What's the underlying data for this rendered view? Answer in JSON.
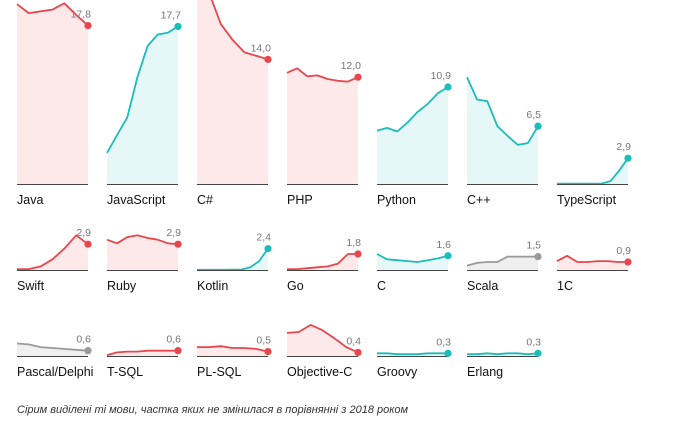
{
  "note": "Сірим виділені ті мови, частка яких не змінилася в порівнянні з 2018 роком",
  "colors": {
    "red": "#e8464d",
    "redFill": "#fde9e9",
    "teal": "#1bbdb8",
    "tealFill": "#e6f7f7",
    "gray": "#9a9a9a",
    "grayFill": "#efefef",
    "axis": "#444444"
  },
  "chart_data": {
    "type": "area",
    "title": "",
    "ymax": 20,
    "panels": [
      {
        "name": "Java",
        "value_label": "17,8",
        "color": "red",
        "values": [
          20.2,
          19.2,
          19.4,
          19.6,
          20.3,
          19.0,
          17.8
        ]
      },
      {
        "name": "JavaScript",
        "value_label": "17,7",
        "color": "teal",
        "values": [
          3.5,
          5.5,
          7.5,
          12.0,
          15.5,
          16.8,
          17.0,
          17.7
        ]
      },
      {
        "name": "C#",
        "value_label": "14,0",
        "color": "red",
        "values": [
          21.5,
          21.6,
          18.0,
          16.2,
          14.8,
          14.4,
          14.0
        ]
      },
      {
        "name": "PHP",
        "value_label": "12,0",
        "color": "red",
        "values": [
          12.5,
          13.0,
          12.1,
          12.2,
          11.8,
          11.6,
          11.5,
          12.0
        ]
      },
      {
        "name": "Python",
        "value_label": "10,9",
        "color": "teal",
        "values": [
          6.0,
          6.3,
          5.9,
          6.9,
          8.1,
          9.0,
          10.2,
          10.9
        ]
      },
      {
        "name": "C++",
        "value_label": "6,5",
        "color": "teal",
        "values": [
          12.0,
          9.5,
          9.3,
          6.5,
          5.4,
          4.4,
          4.6,
          6.5
        ]
      },
      {
        "name": "TypeScript",
        "value_label": "2,9",
        "color": "teal",
        "values": [
          0.05,
          0.05,
          0.05,
          0.05,
          0.05,
          0.05,
          0.3,
          1.5,
          2.9
        ]
      },
      {
        "name": "Swift",
        "value_label": "2,9",
        "color": "red",
        "values": [
          0.1,
          0.1,
          0.4,
          1.2,
          2.4,
          3.9,
          2.9
        ]
      },
      {
        "name": "Ruby",
        "value_label": "2,9",
        "color": "red",
        "values": [
          3.4,
          3.0,
          3.7,
          3.9,
          3.6,
          3.4,
          3.0,
          2.9
        ]
      },
      {
        "name": "Kotlin",
        "value_label": "2,4",
        "color": "teal",
        "values": [
          0.02,
          0.02,
          0.02,
          0.02,
          0.03,
          0.05,
          0.3,
          1.0,
          2.4
        ]
      },
      {
        "name": "Go",
        "value_label": "1,8",
        "color": "red",
        "values": [
          0.1,
          0.1,
          0.2,
          0.3,
          0.4,
          0.7,
          1.8,
          1.8
        ]
      },
      {
        "name": "C",
        "value_label": "1,6",
        "color": "teal",
        "values": [
          1.8,
          1.2,
          1.1,
          1.0,
          0.9,
          1.1,
          1.3,
          1.6
        ]
      },
      {
        "name": "Scala",
        "value_label": "1,5",
        "color": "gray",
        "values": [
          0.5,
          0.8,
          0.9,
          0.9,
          1.5,
          1.5,
          1.5,
          1.5
        ]
      },
      {
        "name": "1C",
        "value_label": "0,9",
        "color": "red",
        "values": [
          1.0,
          1.6,
          0.9,
          0.9,
          1.0,
          1.0,
          0.9,
          0.9
        ]
      },
      {
        "name": "Pascal/Delphi",
        "value_label": "0,6",
        "color": "gray",
        "values": [
          1.4,
          1.3,
          1.0,
          0.9,
          0.8,
          0.7,
          0.6
        ]
      },
      {
        "name": "T-SQL",
        "value_label": "0,6",
        "color": "red",
        "values": [
          0.1,
          0.4,
          0.5,
          0.5,
          0.6,
          0.6,
          0.6,
          0.6
        ]
      },
      {
        "name": "PL-SQL",
        "value_label": "0,5",
        "color": "red",
        "values": [
          1.0,
          1.0,
          1.1,
          0.9,
          0.9,
          0.8,
          0.5
        ]
      },
      {
        "name": "Objective-C",
        "value_label": "0,4",
        "color": "red",
        "values": [
          2.6,
          2.7,
          3.5,
          2.9,
          2.0,
          1.0,
          0.4
        ]
      },
      {
        "name": "Groovy",
        "value_label": "0,3",
        "color": "teal",
        "values": [
          0.3,
          0.3,
          0.2,
          0.2,
          0.2,
          0.3,
          0.3,
          0.3
        ]
      },
      {
        "name": "Erlang",
        "value_label": "0,3",
        "color": "teal",
        "values": [
          0.2,
          0.2,
          0.3,
          0.2,
          0.3,
          0.3,
          0.2,
          0.3
        ]
      }
    ]
  }
}
